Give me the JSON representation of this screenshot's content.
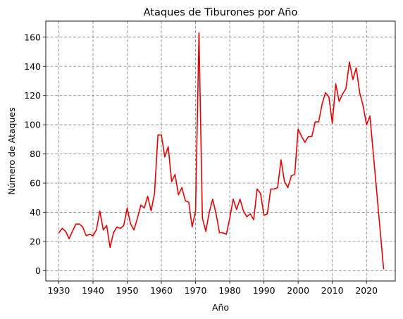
{
  "chart_data": {
    "type": "line",
    "title": "Ataques de Tiburones por Año",
    "xlabel": "Año",
    "ylabel": "Número de Ataques",
    "xlim": [
      1926.2,
      2028.4
    ],
    "ylim": [
      -7,
      171
    ],
    "xticks": [
      1930,
      1940,
      1950,
      1960,
      1970,
      1980,
      1990,
      2000,
      2010,
      2020
    ],
    "yticks": [
      0,
      20,
      40,
      60,
      80,
      100,
      120,
      140,
      160
    ],
    "grid": true,
    "grid_style": "dashed",
    "line_color": "#e80000",
    "series": [
      {
        "x": [
          1930,
          1931,
          1932,
          1933,
          1934,
          1935,
          1936,
          1937,
          1938,
          1939,
          1940,
          1941,
          1942,
          1943,
          1944,
          1945,
          1946,
          1947,
          1948,
          1949,
          1950,
          1951,
          1952,
          1953,
          1954,
          1955,
          1956,
          1957,
          1958,
          1959,
          1960,
          1961,
          1962,
          1963,
          1964,
          1965,
          1966,
          1967,
          1968,
          1969,
          1970,
          1971,
          1972,
          1973,
          1974,
          1975,
          1976,
          1977,
          1978,
          1979,
          1980,
          1981,
          1982,
          1983,
          1984,
          1985,
          1986,
          1987,
          1988,
          1989,
          1990,
          1991,
          1992,
          1993,
          1994,
          1995,
          1996,
          1997,
          1998,
          1999,
          2000,
          2001,
          2002,
          2003,
          2004,
          2005,
          2006,
          2007,
          2008,
          2009,
          2010,
          2011,
          2012,
          2013,
          2014,
          2015,
          2016,
          2017,
          2018,
          2019,
          2020,
          2021,
          2025
        ],
        "values": [
          26,
          29,
          27,
          22,
          27,
          32,
          32,
          30,
          24,
          25,
          24,
          28,
          41,
          28,
          31,
          16,
          26,
          30,
          29,
          31,
          43,
          32,
          28,
          36,
          45,
          43,
          51,
          41,
          53,
          93,
          93,
          78,
          85,
          61,
          66,
          52,
          57,
          48,
          47,
          30,
          41,
          163,
          36,
          27,
          40,
          49,
          39,
          26,
          26,
          25,
          36,
          49,
          42,
          49,
          41,
          37,
          39,
          35,
          56,
          53,
          38,
          39,
          56,
          56,
          57,
          76,
          61,
          57,
          65,
          66,
          97,
          92,
          88,
          92,
          92,
          102,
          102,
          114,
          122,
          119,
          101,
          128,
          116,
          121,
          125,
          143,
          131,
          139,
          122,
          113,
          100,
          106,
          1
        ]
      }
    ]
  }
}
